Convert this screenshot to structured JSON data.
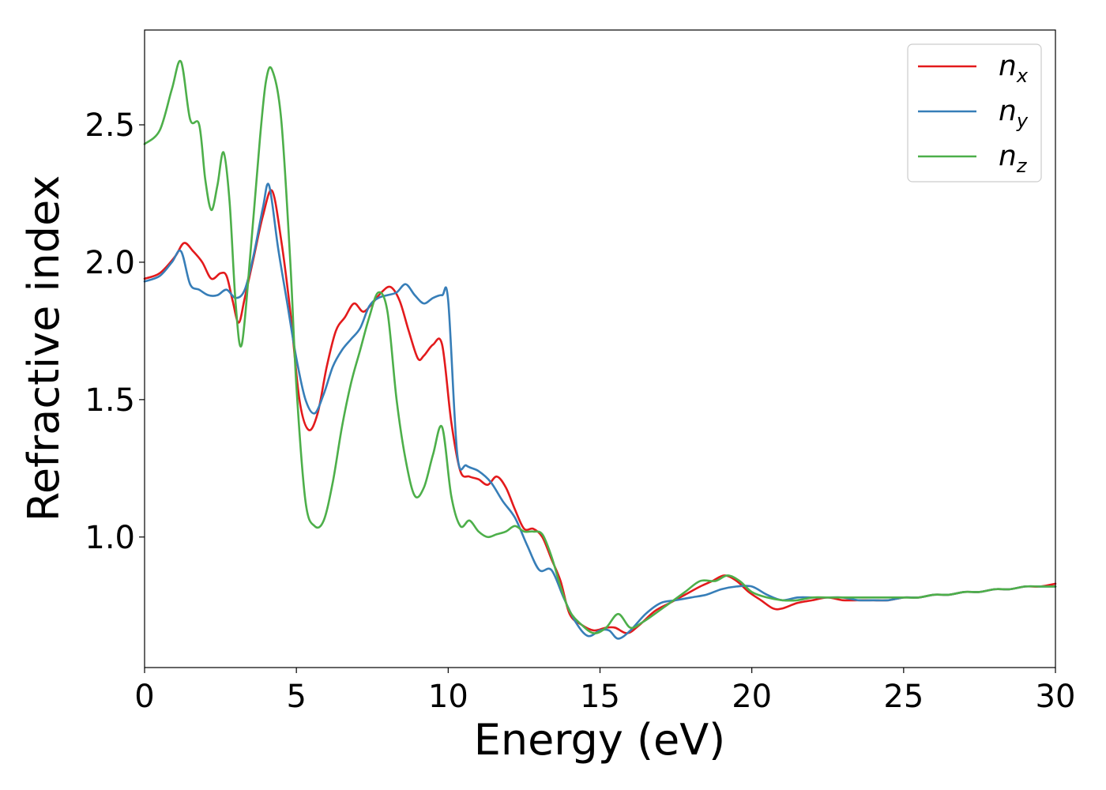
{
  "chart_data": {
    "type": "line",
    "xlabel": "Energy (eV)",
    "ylabel": "Refractive index",
    "xlim": [
      0,
      30
    ],
    "ylim": [
      0.525,
      2.845
    ],
    "xticks": [
      "0",
      "5",
      "10",
      "15",
      "20",
      "25",
      "30"
    ],
    "xtick_values": [
      0,
      5,
      10,
      15,
      20,
      25,
      30
    ],
    "yticks": [
      "1.0",
      "1.5",
      "2.0",
      "2.5"
    ],
    "ytick_values": [
      1.0,
      1.5,
      2.0,
      2.5
    ],
    "grid": false,
    "legend_position": "top-right",
    "series": [
      {
        "name": "n",
        "subscript": "x",
        "color": "#e31a1c",
        "x": [
          0,
          0.5,
          1.0,
          1.3,
          1.6,
          1.9,
          2.2,
          2.5,
          2.7,
          2.9,
          3.1,
          3.3,
          3.6,
          3.9,
          4.2,
          4.5,
          4.8,
          5.1,
          5.4,
          5.7,
          6.0,
          6.3,
          6.6,
          6.9,
          7.2,
          7.5,
          7.8,
          8.1,
          8.4,
          8.7,
          9.0,
          9.2,
          9.5,
          9.8,
          10.1,
          10.4,
          10.7,
          11.0,
          11.3,
          11.6,
          11.9,
          12.2,
          12.5,
          12.8,
          13.1,
          13.4,
          13.7,
          14.0,
          14.4,
          14.8,
          15.2,
          15.5,
          15.9,
          16.3,
          16.8,
          17.3,
          17.8,
          18.3,
          18.7,
          19.1,
          19.5,
          19.9,
          20.3,
          20.7,
          21.0,
          21.5,
          22.0,
          22.5,
          23.0,
          23.5,
          24.0,
          24.5,
          25.0,
          25.5,
          26.0,
          26.5,
          27.0,
          27.5,
          28.0,
          28.5,
          29.0,
          29.5,
          30.0
        ],
        "y": [
          1.94,
          1.96,
          2.02,
          2.07,
          2.04,
          2.0,
          1.94,
          1.96,
          1.95,
          1.86,
          1.78,
          1.87,
          2.02,
          2.17,
          2.26,
          2.08,
          1.82,
          1.5,
          1.39,
          1.45,
          1.62,
          1.75,
          1.8,
          1.85,
          1.82,
          1.85,
          1.89,
          1.91,
          1.86,
          1.75,
          1.65,
          1.66,
          1.7,
          1.7,
          1.42,
          1.24,
          1.22,
          1.21,
          1.19,
          1.22,
          1.18,
          1.1,
          1.03,
          1.03,
          1.0,
          0.92,
          0.84,
          0.72,
          0.68,
          0.66,
          0.67,
          0.67,
          0.65,
          0.68,
          0.73,
          0.76,
          0.79,
          0.82,
          0.84,
          0.86,
          0.84,
          0.8,
          0.77,
          0.74,
          0.74,
          0.76,
          0.77,
          0.78,
          0.77,
          0.77,
          0.77,
          0.77,
          0.78,
          0.78,
          0.79,
          0.79,
          0.8,
          0.8,
          0.81,
          0.81,
          0.82,
          0.82,
          0.83
        ]
      },
      {
        "name": "n",
        "subscript": "y",
        "color": "#377eb8",
        "x": [
          0,
          0.5,
          0.9,
          1.2,
          1.5,
          1.8,
          2.1,
          2.4,
          2.7,
          3.0,
          3.3,
          3.6,
          3.9,
          4.1,
          4.4,
          4.7,
          5.0,
          5.3,
          5.6,
          5.9,
          6.2,
          6.5,
          6.8,
          7.1,
          7.4,
          7.7,
          8.0,
          8.3,
          8.6,
          8.9,
          9.2,
          9.5,
          9.8,
          10.0,
          10.3,
          10.6,
          11.0,
          11.4,
          11.8,
          12.2,
          12.6,
          13.0,
          13.4,
          13.8,
          14.2,
          14.6,
          15.0,
          15.3,
          15.6,
          16.0,
          16.5,
          17.0,
          17.5,
          18.0,
          18.5,
          19.0,
          19.5,
          20.0,
          20.5,
          21.0,
          21.5,
          22.0,
          22.5,
          23.0,
          23.5,
          24.0,
          24.5,
          25.0,
          25.5,
          26.0,
          26.5,
          27.0,
          27.5,
          28.0,
          28.5,
          29.0,
          29.5,
          30.0
        ],
        "y": [
          1.93,
          1.95,
          2.0,
          2.04,
          1.92,
          1.9,
          1.88,
          1.88,
          1.9,
          1.87,
          1.9,
          2.03,
          2.2,
          2.28,
          2.05,
          1.85,
          1.65,
          1.5,
          1.45,
          1.52,
          1.62,
          1.68,
          1.72,
          1.76,
          1.84,
          1.87,
          1.88,
          1.89,
          1.92,
          1.88,
          1.85,
          1.87,
          1.88,
          1.86,
          1.3,
          1.26,
          1.24,
          1.2,
          1.13,
          1.07,
          0.97,
          0.88,
          0.88,
          0.78,
          0.69,
          0.64,
          0.66,
          0.66,
          0.63,
          0.66,
          0.72,
          0.76,
          0.77,
          0.78,
          0.79,
          0.81,
          0.82,
          0.82,
          0.79,
          0.77,
          0.78,
          0.78,
          0.78,
          0.78,
          0.77,
          0.77,
          0.77,
          0.78,
          0.78,
          0.79,
          0.79,
          0.8,
          0.8,
          0.81,
          0.81,
          0.82,
          0.82,
          0.82
        ]
      },
      {
        "name": "n",
        "subscript": "z",
        "color": "#4daf4a",
        "x": [
          0,
          0.5,
          0.9,
          1.2,
          1.5,
          1.8,
          2.0,
          2.2,
          2.4,
          2.6,
          2.8,
          3.0,
          3.2,
          3.5,
          3.8,
          4.0,
          4.2,
          4.5,
          4.8,
          5.0,
          5.3,
          5.6,
          5.9,
          6.2,
          6.5,
          6.8,
          7.1,
          7.4,
          7.7,
          8.0,
          8.3,
          8.6,
          8.9,
          9.2,
          9.5,
          9.8,
          10.1,
          10.4,
          10.7,
          11.0,
          11.3,
          11.6,
          11.9,
          12.2,
          12.5,
          12.8,
          13.1,
          13.4,
          13.7,
          14.0,
          14.4,
          14.8,
          15.2,
          15.6,
          16.0,
          16.4,
          16.8,
          17.3,
          17.8,
          18.3,
          18.8,
          19.2,
          19.6,
          20.0,
          20.5,
          21.0,
          21.5,
          22.0,
          22.5,
          23.0,
          23.5,
          24.0,
          24.5,
          25.0,
          25.5,
          26.0,
          26.5,
          27.0,
          27.5,
          28.0,
          28.5,
          29.0,
          29.5,
          30.0
        ],
        "y": [
          2.43,
          2.48,
          2.63,
          2.73,
          2.52,
          2.5,
          2.3,
          2.19,
          2.28,
          2.4,
          2.22,
          1.85,
          1.7,
          2.05,
          2.45,
          2.66,
          2.7,
          2.52,
          2.0,
          1.55,
          1.13,
          1.04,
          1.06,
          1.2,
          1.4,
          1.56,
          1.68,
          1.8,
          1.89,
          1.82,
          1.5,
          1.28,
          1.15,
          1.18,
          1.3,
          1.4,
          1.15,
          1.04,
          1.06,
          1.02,
          1.0,
          1.01,
          1.02,
          1.04,
          1.02,
          1.02,
          1.01,
          0.93,
          0.82,
          0.73,
          0.68,
          0.65,
          0.67,
          0.72,
          0.67,
          0.69,
          0.72,
          0.76,
          0.8,
          0.84,
          0.84,
          0.86,
          0.84,
          0.8,
          0.78,
          0.77,
          0.77,
          0.78,
          0.78,
          0.78,
          0.78,
          0.78,
          0.78,
          0.78,
          0.78,
          0.79,
          0.79,
          0.8,
          0.8,
          0.81,
          0.81,
          0.82,
          0.82,
          0.82
        ]
      }
    ]
  }
}
